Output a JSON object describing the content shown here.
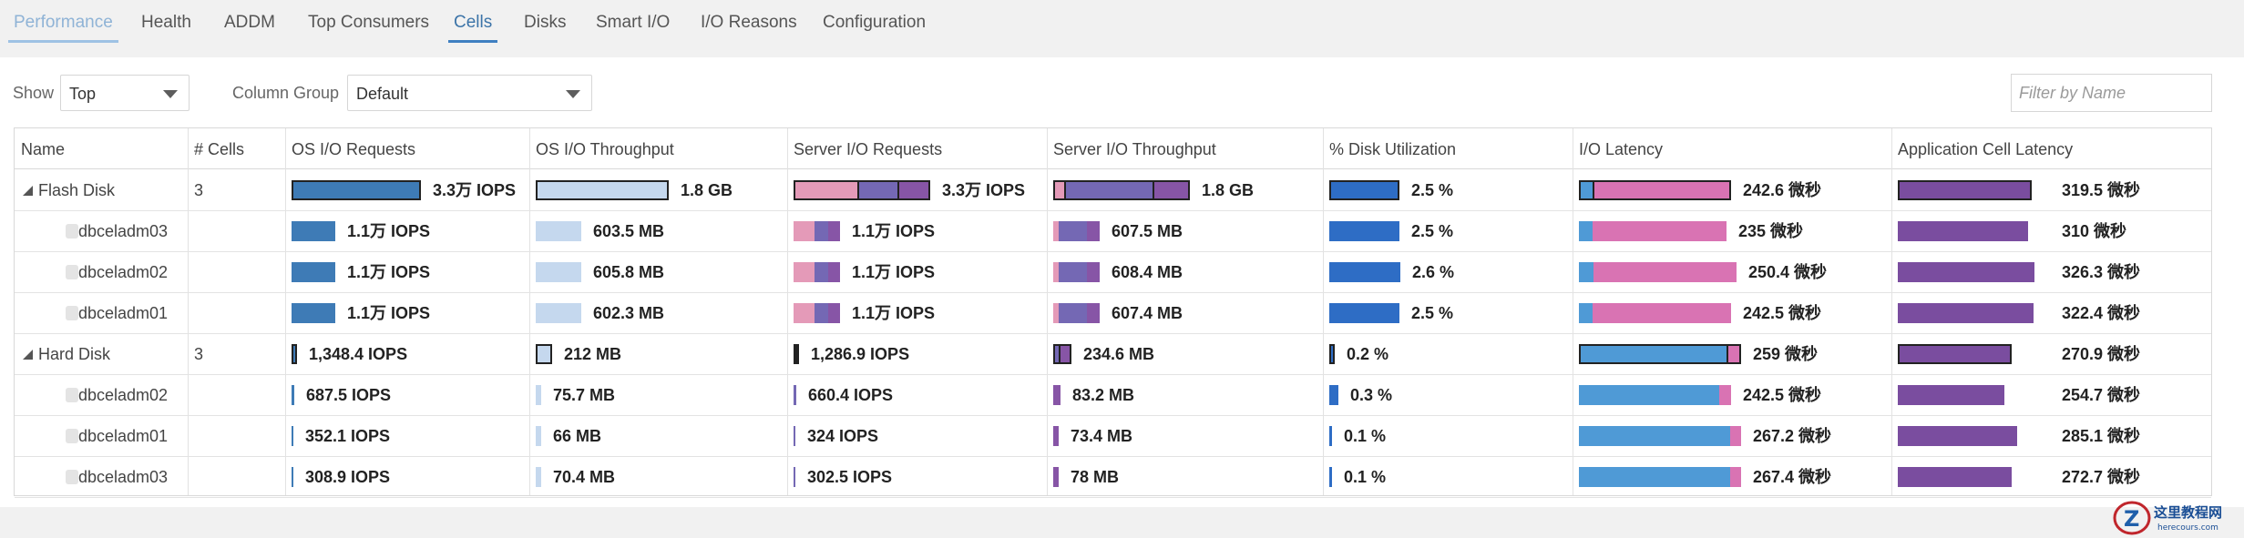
{
  "tabs": [
    {
      "label": "Performance",
      "state": "disabled"
    },
    {
      "label": "Health",
      "state": ""
    },
    {
      "label": "ADDM",
      "state": ""
    },
    {
      "label": "Top Consumers",
      "state": ""
    },
    {
      "label": "Cells",
      "state": "active"
    },
    {
      "label": "Disks",
      "state": ""
    },
    {
      "label": "Smart I/O",
      "state": ""
    },
    {
      "label": "I/O Reasons",
      "state": ""
    },
    {
      "label": "Configuration",
      "state": ""
    }
  ],
  "toolbar": {
    "show_label": "Show",
    "show_value": "Top",
    "column_group_label": "Column Group",
    "column_group_value": "Default",
    "filter_placeholder": "Filter by Name"
  },
  "columns": [
    "Name",
    "# Cells",
    "OS I/O Requests",
    "OS I/O Throughput",
    "Server I/O Requests",
    "Server I/O Throughput",
    "% Disk Utilization",
    "I/O Latency",
    "Application Cell Latency"
  ],
  "colors": {
    "os_requests": "#3e7bb6",
    "os_throughput": "#c5d8ee",
    "server_seg1": "#e49ab8",
    "server_seg2": "#7468b4",
    "server_seg3": "#8755a6",
    "disk_util": "#2e6dc5",
    "latency_blue": "#4f9ad6",
    "latency_pink": "#d973b3",
    "app_latency": "#7a4d9f"
  },
  "rows": [
    {
      "type": "group",
      "name": "Flash Disk",
      "cells": "3",
      "os_req": {
        "label": "3.3万 IOPS",
        "fill": 1.0
      },
      "os_thr": {
        "label": "1.8 GB",
        "fill": 1.0
      },
      "srv_req": {
        "label": "3.3万 IOPS",
        "fill": 1.0,
        "parts": [
          0.48,
          0.3,
          0.22
        ]
      },
      "srv_thr": {
        "label": "1.8 GB",
        "fill": 1.0,
        "parts": [
          0.08,
          0.67,
          0.25
        ]
      },
      "disk": {
        "label": "2.5 %",
        "fill": 0.96
      },
      "lat": {
        "label": "242.6 微秒",
        "fill": 0.94,
        "parts": [
          0.09,
          0.91
        ]
      },
      "app": {
        "label": "319.5 微秒",
        "fill": 0.98
      }
    },
    {
      "type": "child",
      "name": "dbceladm03",
      "os_req": {
        "label": "1.1万 IOPS",
        "fill": 0.34
      },
      "os_thr": {
        "label": "603.5 MB",
        "fill": 0.34
      },
      "srv_req": {
        "label": "1.1万 IOPS",
        "fill": 0.34,
        "parts": [
          0.45,
          0.3,
          0.25
        ]
      },
      "srv_thr": {
        "label": "607.5 MB",
        "fill": 0.34,
        "parts": [
          0.12,
          0.6,
          0.28
        ]
      },
      "disk": {
        "label": "2.5 %",
        "fill": 0.96
      },
      "lat": {
        "label": "235 微秒",
        "fill": 0.91,
        "parts": [
          0.09,
          0.91
        ]
      },
      "app": {
        "label": "310 微秒",
        "fill": 0.95
      }
    },
    {
      "type": "child",
      "name": "dbceladm02",
      "os_req": {
        "label": "1.1万 IOPS",
        "fill": 0.34
      },
      "os_thr": {
        "label": "605.8 MB",
        "fill": 0.34
      },
      "srv_req": {
        "label": "1.1万 IOPS",
        "fill": 0.34,
        "parts": [
          0.45,
          0.3,
          0.25
        ]
      },
      "srv_thr": {
        "label": "608.4 MB",
        "fill": 0.34,
        "parts": [
          0.12,
          0.6,
          0.28
        ]
      },
      "disk": {
        "label": "2.6 %",
        "fill": 0.98
      },
      "lat": {
        "label": "250.4 微秒",
        "fill": 0.97,
        "parts": [
          0.09,
          0.91
        ]
      },
      "app": {
        "label": "326.3 微秒",
        "fill": 1.0
      }
    },
    {
      "type": "child",
      "name": "dbceladm01",
      "os_req": {
        "label": "1.1万 IOPS",
        "fill": 0.34
      },
      "os_thr": {
        "label": "602.3 MB",
        "fill": 0.34
      },
      "srv_req": {
        "label": "1.1万 IOPS",
        "fill": 0.34,
        "parts": [
          0.45,
          0.3,
          0.25
        ]
      },
      "srv_thr": {
        "label": "607.4 MB",
        "fill": 0.34,
        "parts": [
          0.12,
          0.6,
          0.28
        ]
      },
      "disk": {
        "label": "2.5 %",
        "fill": 0.96
      },
      "lat": {
        "label": "242.5 微秒",
        "fill": 0.94,
        "parts": [
          0.09,
          0.91
        ]
      },
      "app": {
        "label": "322.4 微秒",
        "fill": 0.99
      }
    },
    {
      "type": "group",
      "name": "Hard Disk",
      "cells": "3",
      "os_req": {
        "label": "1,348.4 IOPS",
        "fill": 0.04
      },
      "os_thr": {
        "label": "212 MB",
        "fill": 0.12
      },
      "srv_req": {
        "label": "1,286.9 IOPS",
        "fill": 0.04,
        "parts": [
          0.0,
          0.5,
          0.5
        ]
      },
      "srv_thr": {
        "label": "234.6 MB",
        "fill": 0.13,
        "parts": [
          0.0,
          0.4,
          0.6
        ]
      },
      "disk": {
        "label": "0.2 %",
        "fill": 0.08
      },
      "lat": {
        "label": "259 微秒",
        "fill": 1.0,
        "parts": [
          0.93,
          0.07
        ]
      },
      "app": {
        "label": "270.9 微秒",
        "fill": 0.83
      }
    },
    {
      "type": "child",
      "name": "dbceladm02",
      "os_req": {
        "label": "687.5 IOPS",
        "fill": 0.02
      },
      "os_thr": {
        "label": "75.7 MB",
        "fill": 0.04
      },
      "srv_req": {
        "label": "660.4 IOPS",
        "fill": 0.02,
        "parts": [
          0.0,
          1.0,
          0.0
        ]
      },
      "srv_thr": {
        "label": "83.2 MB",
        "fill": 0.05,
        "parts": [
          0.0,
          0.0,
          1.0
        ]
      },
      "disk": {
        "label": "0.3 %",
        "fill": 0.12
      },
      "lat": {
        "label": "242.5 微秒",
        "fill": 0.94,
        "parts": [
          0.92,
          0.08
        ]
      },
      "app": {
        "label": "254.7 微秒",
        "fill": 0.78
      }
    },
    {
      "type": "child",
      "name": "dbceladm01",
      "os_req": {
        "label": "352.1 IOPS",
        "fill": 0.01
      },
      "os_thr": {
        "label": "66 MB",
        "fill": 0.04
      },
      "srv_req": {
        "label": "324 IOPS",
        "fill": 0.01,
        "parts": [
          0.0,
          1.0,
          0.0
        ]
      },
      "srv_thr": {
        "label": "73.4 MB",
        "fill": 0.04,
        "parts": [
          0.0,
          0.0,
          1.0
        ]
      },
      "disk": {
        "label": "0.1 %",
        "fill": 0.04
      },
      "lat": {
        "label": "267.2 微秒",
        "fill": 1.0,
        "parts": [
          0.93,
          0.07
        ]
      },
      "app": {
        "label": "285.1 微秒",
        "fill": 0.87
      }
    },
    {
      "type": "child",
      "name": "dbceladm03",
      "os_req": {
        "label": "308.9 IOPS",
        "fill": 0.01
      },
      "os_thr": {
        "label": "70.4 MB",
        "fill": 0.04
      },
      "srv_req": {
        "label": "302.5 IOPS",
        "fill": 0.01,
        "parts": [
          0.0,
          1.0,
          0.0
        ]
      },
      "srv_thr": {
        "label": "78 MB",
        "fill": 0.04,
        "parts": [
          0.0,
          0.0,
          1.0
        ]
      },
      "disk": {
        "label": "0.1 %",
        "fill": 0.04
      },
      "lat": {
        "label": "267.4 微秒",
        "fill": 1.0,
        "parts": [
          0.93,
          0.07
        ]
      },
      "app": {
        "label": "272.7 微秒",
        "fill": 0.83
      }
    }
  ],
  "watermark": {
    "title": "这里教程网",
    "url": "herecours.com"
  }
}
